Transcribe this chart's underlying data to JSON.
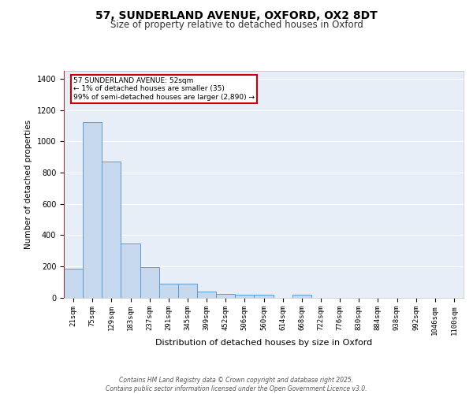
{
  "title1": "57, SUNDERLAND AVENUE, OXFORD, OX2 8DT",
  "title2": "Size of property relative to detached houses in Oxford",
  "xlabel": "Distribution of detached houses by size in Oxford",
  "ylabel": "Number of detached properties",
  "categories": [
    "21sqm",
    "75sqm",
    "129sqm",
    "183sqm",
    "237sqm",
    "291sqm",
    "345sqm",
    "399sqm",
    "452sqm",
    "506sqm",
    "560sqm",
    "614sqm",
    "668sqm",
    "722sqm",
    "776sqm",
    "830sqm",
    "884sqm",
    "938sqm",
    "992sqm",
    "1046sqm",
    "1100sqm"
  ],
  "values": [
    185,
    1120,
    870,
    345,
    195,
    90,
    90,
    40,
    25,
    20,
    20,
    0,
    18,
    0,
    0,
    0,
    0,
    0,
    0,
    0,
    0
  ],
  "bar_color": "#c5d8ed",
  "bar_edge_color": "#5b9bd5",
  "bg_color": "#e8eef8",
  "annotation_text": "57 SUNDERLAND AVENUE: 52sqm\n← 1% of detached houses are smaller (35)\n99% of semi-detached houses are larger (2,890) →",
  "annotation_box_facecolor": "#ffffff",
  "annotation_box_edgecolor": "#cc0000",
  "vline_color": "#cc0000",
  "footer": "Contains HM Land Registry data © Crown copyright and database right 2025.\nContains public sector information licensed under the Open Government Licence v3.0.",
  "ylim": [
    0,
    1450
  ],
  "yticks": [
    0,
    200,
    400,
    600,
    800,
    1000,
    1200,
    1400
  ],
  "grid_color": "#ffffff",
  "spine_color": "#c0c0c0",
  "title1_fontsize": 10,
  "title2_fontsize": 8.5,
  "xlabel_fontsize": 8,
  "ylabel_fontsize": 7.5,
  "tick_fontsize": 6.5,
  "footer_fontsize": 5.5
}
